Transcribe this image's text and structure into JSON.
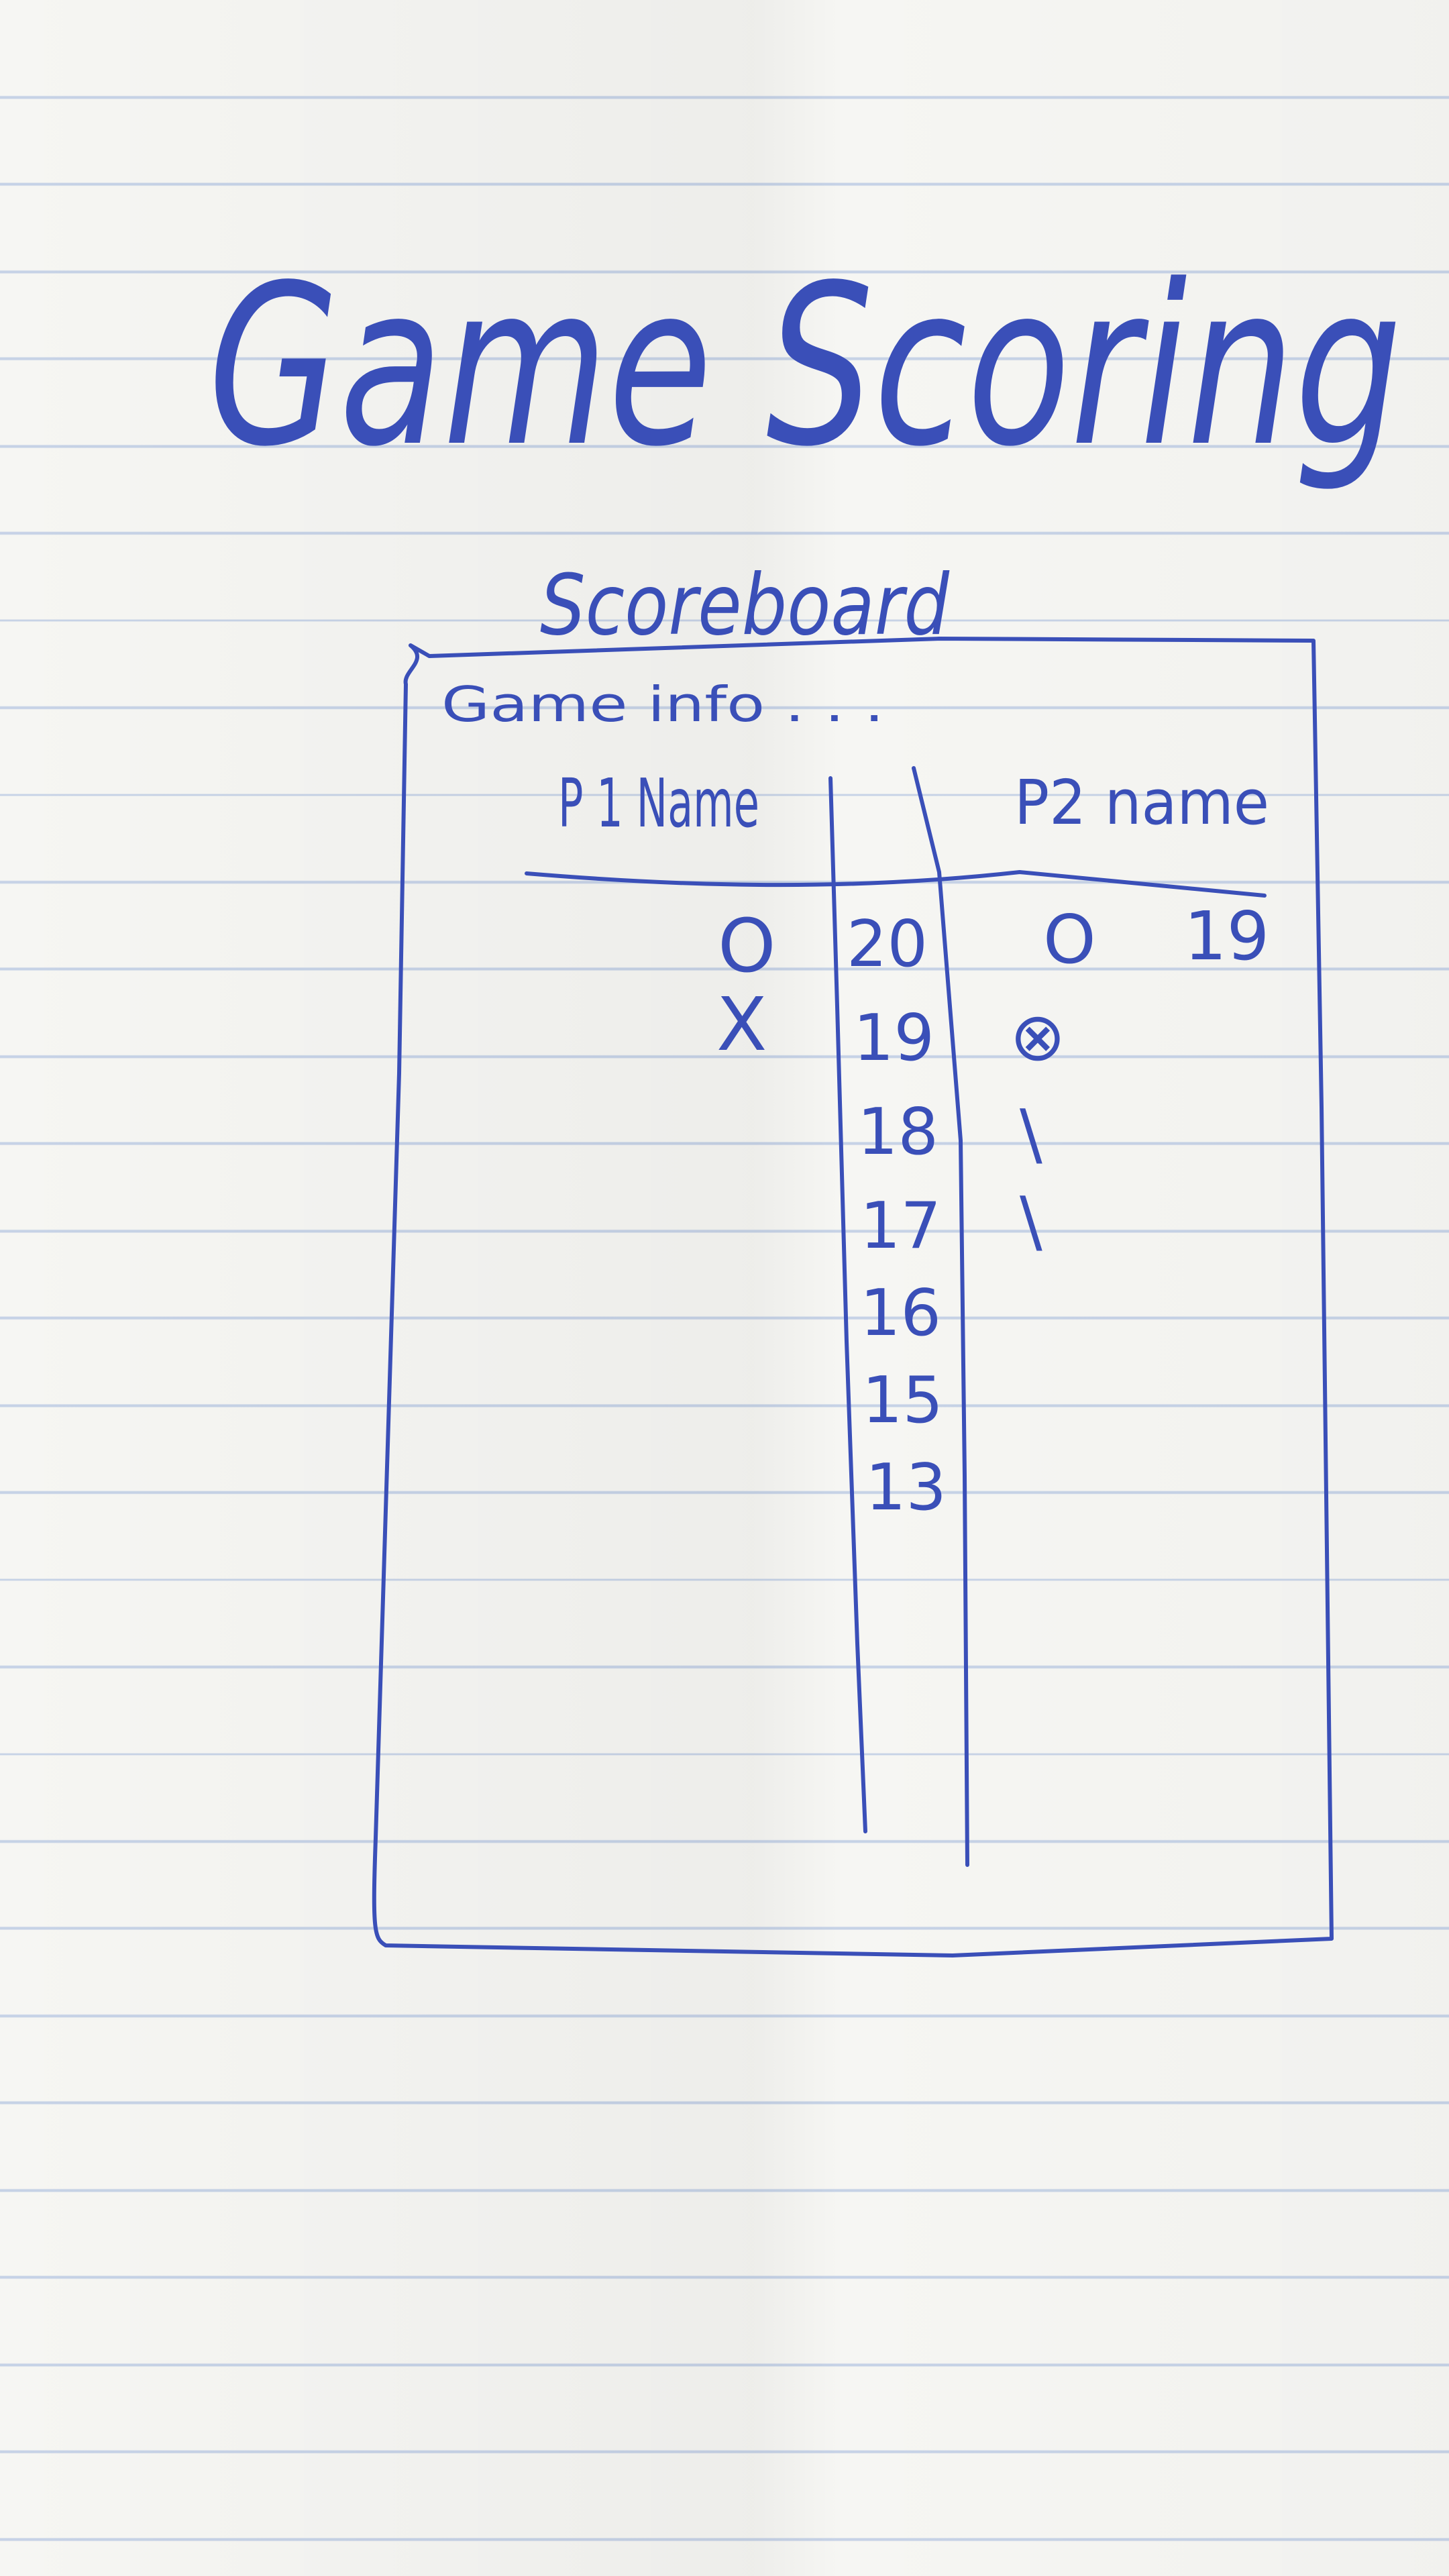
{
  "page": {
    "title": "Game Scoring",
    "paper": "lined-notebook-paper"
  },
  "scoreboard": {
    "title": "Scoreboard",
    "info": "Game info . . .",
    "player1_label": "P 1 Name",
    "player2_label": "P2 name",
    "player1_marks": [
      "O",
      "X"
    ],
    "player2_marks": [
      "O",
      "⊗",
      "\\",
      "\\"
    ],
    "player2_score": "19",
    "count_column": [
      "20",
      "19",
      "18",
      "17",
      "16",
      "15",
      "13"
    ]
  },
  "colors": {
    "ink": "#3a4fb8",
    "paper": "#f6f6f3",
    "rule_line": "#c6d2e6"
  }
}
